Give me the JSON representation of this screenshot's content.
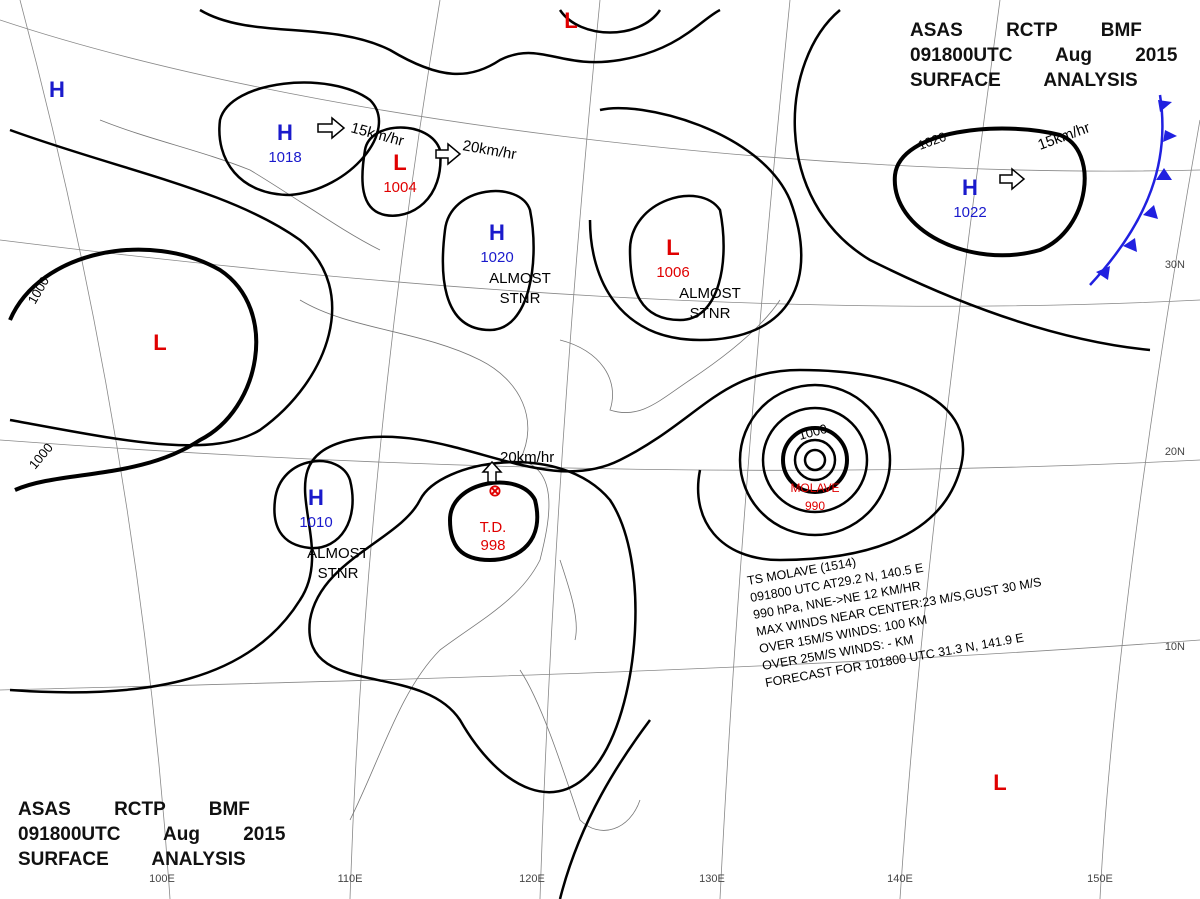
{
  "header": {
    "lines": [
      "ASAS RCTP BMF",
      "091800UTC Aug 2015",
      "SURFACE ANALYSIS"
    ]
  },
  "pressure_centers": [
    {
      "symbol": "H"
    },
    {
      "symbol": "H",
      "value": 1018
    },
    {
      "symbol": "L",
      "value": 1004
    },
    {
      "symbol": "H",
      "value": 1020
    },
    {
      "symbol": "L",
      "value": 1006
    },
    {
      "symbol": "H",
      "value": 1022
    },
    {
      "symbol": "L"
    },
    {
      "symbol": "H",
      "value": 1010
    },
    {
      "symbol": "L"
    },
    {
      "symbol": "L"
    }
  ],
  "tropical": [
    {
      "name": "T.D.",
      "value": 998
    },
    {
      "name": "MOLAVE",
      "value": 990
    }
  ],
  "isobar_labels": [
    1000,
    1000,
    1020,
    1000
  ],
  "motion_labels": [
    "15km/hr",
    "20km/hr",
    "15km/hr",
    "20km/hr"
  ],
  "stationary_labels": [
    [
      "ALMOST",
      "STNR"
    ],
    [
      "ALMOST",
      "STNR"
    ],
    [
      "ALMOST",
      "STNR"
    ]
  ],
  "storm_info": [
    "TS MOLAVE (1514)",
    "091800 UTC AT29.2 N, 140.5 E",
    "990 hPa, NNE->NE 12 KM/HR",
    "MAX WINDS NEAR CENTER:23 M/S,GUST 30 M/S",
    "OVER 15M/S WINDS: 100 KM",
    "OVER 25M/S WINDS: - KM",
    "FORECAST FOR 101800 UTC 31.3 N, 141.9 E"
  ],
  "grid_labels": {
    "lat": [
      "30N",
      "20N",
      "10N"
    ],
    "lon": [
      "100E",
      "110E",
      "120E",
      "130E",
      "140E",
      "150E"
    ]
  }
}
